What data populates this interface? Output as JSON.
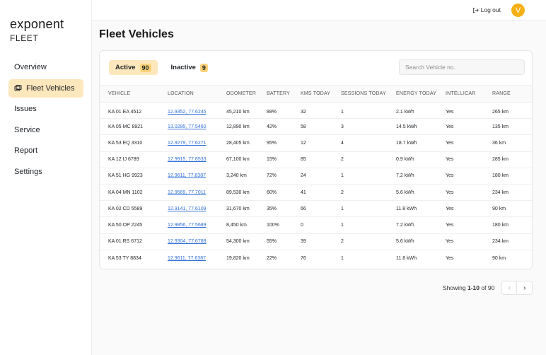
{
  "app": {
    "logo_word": "exponent",
    "logo_sub": "FLEET"
  },
  "sidebar": {
    "items": [
      {
        "label": "Overview",
        "active": false
      },
      {
        "label": "Fleet Vehicles",
        "active": true,
        "icon": "vehicles-icon"
      },
      {
        "label": "Issues",
        "active": false
      },
      {
        "label": "Service",
        "active": false
      },
      {
        "label": "Report",
        "active": false
      },
      {
        "label": "Settings",
        "active": false
      }
    ]
  },
  "topbar": {
    "logout_label": "Log out",
    "avatar_initial": "V"
  },
  "page": {
    "title": "Fleet Vehicles"
  },
  "tabs": [
    {
      "label": "Active",
      "count": "90",
      "active": true
    },
    {
      "label": "Inactive",
      "count": "9",
      "active": false
    }
  ],
  "search": {
    "placeholder": "Search Vehicle no.",
    "value": ""
  },
  "table": {
    "headers": [
      "VEHICLE",
      "LOCATION",
      "ODOMETER",
      "BATTERY",
      "KMS TODAY",
      "SESSIONS TODAY",
      "ENERGY TODAY",
      "INTELLICAR",
      "RANGE"
    ],
    "rows": [
      [
        "KA 01 EA 4512",
        "12.9352, 77.6245",
        "45,210 km",
        "88%",
        "32",
        "1",
        "2.1 kWh",
        "Yes",
        "265 km"
      ],
      [
        "KA 05 MC 8921",
        "13.0285, 77.5460",
        "12,890 km",
        "42%",
        "58",
        "3",
        "14.5 kWh",
        "Yes",
        "135 km"
      ],
      [
        "KA 53 EQ 3310",
        "12.9279, 77.6271",
        "28,405 km",
        "95%",
        "12",
        "4",
        "18.7 kWh",
        "Yes",
        "36 km"
      ],
      [
        "KA 12 IJ 6789",
        "12.9915, 77.6533",
        "67,100 km",
        "15%",
        "85",
        "2",
        "0.9 kWh",
        "Yes",
        "285 km"
      ],
      [
        "KA 51 HG 9923",
        "12.9611, 77.6387",
        "3,240 km",
        "72%",
        "24",
        "1",
        "7.2 kWh",
        "Yes",
        "180 km"
      ],
      [
        "KA 04 MN 1102",
        "12.9569, 77.7011",
        "89,530 km",
        "60%",
        "41",
        "2",
        "5.6 kWh",
        "Yes",
        "234 km"
      ],
      [
        "KA 02 CD 5589",
        "12.9141, 77.6109",
        "31,670 km",
        "35%",
        "66",
        "1",
        "11.8 kWh",
        "Yes",
        "90 km"
      ],
      [
        "KA 50 OP 2245",
        "12.9856, 77.5689",
        "8,450 km",
        "100%",
        "0",
        "1",
        "7.2 kWh",
        "Yes",
        "180 km"
      ],
      [
        "KA 01 RS 6712",
        "12.9304, 77.6788",
        "54,300 km",
        "55%",
        "39",
        "2",
        "5.6 kWh",
        "Yes",
        "234 km"
      ],
      [
        "KA 53 TY 8834",
        "12.9611, 77.6387",
        "19,820 km",
        "22%",
        "76",
        "1",
        "11.8 kWh",
        "Yes",
        "90 km"
      ]
    ]
  },
  "pagination": {
    "prefix": "Showing",
    "range": "1-10",
    "of_label": "of",
    "total": "90"
  },
  "colors": {
    "accent": "#fde7bc",
    "badge": "#fbd27a",
    "avatar": "#f5b014",
    "link": "#2f6fd8"
  }
}
